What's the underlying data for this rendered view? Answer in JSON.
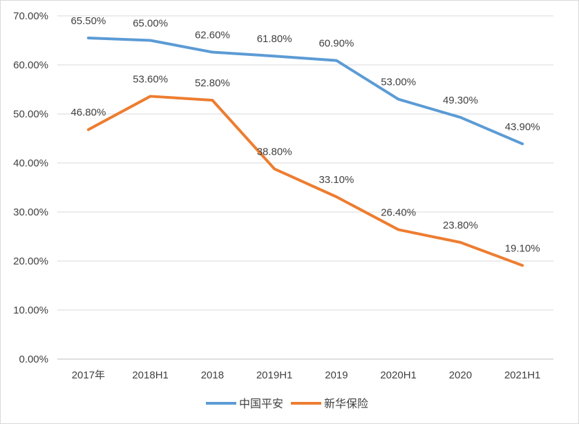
{
  "chart_data": {
    "type": "line",
    "categories": [
      "2017年",
      "2018H1",
      "2018",
      "2019H1",
      "2019",
      "2020H1",
      "2020",
      "2021H1"
    ],
    "series": [
      {
        "name": "中国平安",
        "color": "#5b9bd5",
        "values": [
          65.5,
          65.0,
          62.6,
          61.8,
          60.9,
          53.0,
          49.3,
          43.9
        ],
        "labels": [
          "65.50%",
          "65.00%",
          "62.60%",
          "61.80%",
          "60.90%",
          "53.00%",
          "49.30%",
          "43.90%"
        ]
      },
      {
        "name": "新华保险",
        "color": "#ed7d31",
        "values": [
          46.8,
          53.6,
          52.8,
          38.8,
          33.1,
          26.4,
          23.8,
          19.1
        ],
        "labels": [
          "46.80%",
          "53.60%",
          "52.80%",
          "38.80%",
          "33.10%",
          "26.40%",
          "23.80%",
          "19.10%"
        ]
      }
    ],
    "y_ticks": [
      0,
      10,
      20,
      30,
      40,
      50,
      60,
      70
    ],
    "y_tick_labels": [
      "0.00%",
      "10.00%",
      "20.00%",
      "30.00%",
      "40.00%",
      "50.00%",
      "60.00%",
      "70.00%"
    ],
    "ylim": [
      0,
      70
    ],
    "grid": true,
    "legend_position": "bottom",
    "title": "",
    "xlabel": "",
    "ylabel": ""
  }
}
